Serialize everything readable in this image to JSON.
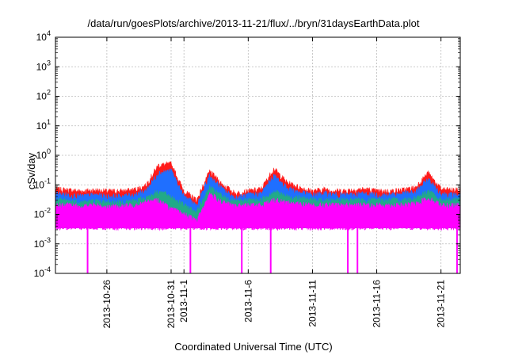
{
  "colors": {
    "red": "#ff1a1a",
    "blue": "#1f6fff",
    "teal": "#22aa88",
    "magenta": "#ff00ff",
    "grid": "#bbbbbb"
  },
  "chart_data": {
    "type": "line",
    "title": "/data/run/goesPlots/archive/2013-11-21/flux/../bryn/31daysEarthData.plot",
    "xlabel": "Coordinated Universal Time (UTC)",
    "ylabel": "cSv/day",
    "yscale": "log",
    "ylim": [
      0.0001,
      10000
    ],
    "xlim": [
      "2013-10-22T00:00",
      "2013-11-22T12:00"
    ],
    "grid": true,
    "legend": "none",
    "y_ticks": [
      {
        "value": 0.0001,
        "base": "10",
        "exp": "-4"
      },
      {
        "value": 0.001,
        "base": "10",
        "exp": "-3"
      },
      {
        "value": 0.01,
        "base": "10",
        "exp": "-2"
      },
      {
        "value": 0.1,
        "base": "10",
        "exp": "-1"
      },
      {
        "value": 1,
        "base": "10",
        "exp": "0"
      },
      {
        "value": 10,
        "base": "10",
        "exp": "1"
      },
      {
        "value": 100,
        "base": "10",
        "exp": "2"
      },
      {
        "value": 1000,
        "base": "10",
        "exp": "3"
      },
      {
        "value": 10000,
        "base": "10",
        "exp": "4"
      }
    ],
    "x_ticks": [
      {
        "date": "2013-10-26",
        "label": "2013-10-26"
      },
      {
        "date": "2013-10-31",
        "label": "2013-10-31"
      },
      {
        "date": "2013-11-01",
        "label": "2013-11-1"
      },
      {
        "date": "2013-11-06",
        "label": "2013-11-6"
      },
      {
        "date": "2013-11-11",
        "label": "2013-11-11"
      },
      {
        "date": "2013-11-16",
        "label": "2013-11-16"
      },
      {
        "date": "2013-11-21",
        "label": "2013-11-21"
      }
    ],
    "series": [
      {
        "color": "#ff1a1a",
        "x": [
          "2013-10-22",
          "2013-10-23",
          "2013-10-24",
          "2013-10-25",
          "2013-10-26",
          "2013-10-27",
          "2013-10-28",
          "2013-10-29",
          "2013-10-30",
          "2013-10-31",
          "2013-11-01",
          "2013-11-02",
          "2013-11-03",
          "2013-11-04",
          "2013-11-05",
          "2013-11-06",
          "2013-11-07",
          "2013-11-08",
          "2013-11-09",
          "2013-11-10",
          "2013-11-11",
          "2013-11-12",
          "2013-11-13",
          "2013-11-14",
          "2013-11-15",
          "2013-11-16",
          "2013-11-17",
          "2013-11-18",
          "2013-11-19",
          "2013-11-20",
          "2013-11-21",
          "2013-11-22"
        ],
        "y": [
          0.07,
          0.065,
          0.06,
          0.065,
          0.06,
          0.06,
          0.065,
          0.09,
          0.45,
          0.5,
          0.06,
          0.03,
          0.28,
          0.1,
          0.05,
          0.06,
          0.07,
          0.35,
          0.12,
          0.08,
          0.06,
          0.07,
          0.06,
          0.065,
          0.07,
          0.06,
          0.06,
          0.065,
          0.08,
          0.25,
          0.07,
          0.065
        ]
      },
      {
        "color": "#1f6fff",
        "x": [
          "2013-10-22",
          "2013-10-23",
          "2013-10-24",
          "2013-10-25",
          "2013-10-26",
          "2013-10-27",
          "2013-10-28",
          "2013-10-29",
          "2013-10-30",
          "2013-10-31",
          "2013-11-01",
          "2013-11-02",
          "2013-11-03",
          "2013-11-04",
          "2013-11-05",
          "2013-11-06",
          "2013-11-07",
          "2013-11-08",
          "2013-11-09",
          "2013-11-10",
          "2013-11-11",
          "2013-11-12",
          "2013-11-13",
          "2013-11-14",
          "2013-11-15",
          "2013-11-16",
          "2013-11-17",
          "2013-11-18",
          "2013-11-19",
          "2013-11-20",
          "2013-11-21",
          "2013-11-22"
        ],
        "y": [
          0.05,
          0.045,
          0.04,
          0.045,
          0.04,
          0.04,
          0.045,
          0.06,
          0.25,
          0.3,
          0.04,
          0.02,
          0.2,
          0.07,
          0.035,
          0.045,
          0.05,
          0.2,
          0.08,
          0.055,
          0.045,
          0.05,
          0.045,
          0.045,
          0.05,
          0.045,
          0.045,
          0.05,
          0.055,
          0.15,
          0.05,
          0.045
        ]
      },
      {
        "color": "#22aa88",
        "x": [
          "2013-10-22",
          "2013-10-23",
          "2013-10-24",
          "2013-10-25",
          "2013-10-26",
          "2013-10-27",
          "2013-10-28",
          "2013-10-29",
          "2013-10-30",
          "2013-10-31",
          "2013-11-01",
          "2013-11-02",
          "2013-11-03",
          "2013-11-04",
          "2013-11-05",
          "2013-11-06",
          "2013-11-07",
          "2013-11-08",
          "2013-11-09",
          "2013-11-10",
          "2013-11-11",
          "2013-11-12",
          "2013-11-13",
          "2013-11-14",
          "2013-11-15",
          "2013-11-16",
          "2013-11-17",
          "2013-11-18",
          "2013-11-19",
          "2013-11-20",
          "2013-11-21",
          "2013-11-22"
        ],
        "y": [
          0.03,
          0.028,
          0.025,
          0.028,
          0.025,
          0.025,
          0.028,
          0.035,
          0.06,
          0.04,
          0.02,
          0.012,
          0.08,
          0.04,
          0.025,
          0.03,
          0.03,
          0.06,
          0.04,
          0.035,
          0.03,
          0.03,
          0.03,
          0.03,
          0.03,
          0.03,
          0.03,
          0.03,
          0.035,
          0.06,
          0.03,
          0.03
        ]
      },
      {
        "color": "#ff00ff",
        "x": [
          "2013-10-22",
          "2013-10-23",
          "2013-10-24",
          "2013-10-25",
          "2013-10-26",
          "2013-10-27",
          "2013-10-28",
          "2013-10-29",
          "2013-10-30",
          "2013-10-31",
          "2013-11-01",
          "2013-11-02",
          "2013-11-03",
          "2013-11-04",
          "2013-11-05",
          "2013-11-06",
          "2013-11-07",
          "2013-11-08",
          "2013-11-09",
          "2013-11-10",
          "2013-11-11",
          "2013-11-12",
          "2013-11-13",
          "2013-11-14",
          "2013-11-15",
          "2013-11-16",
          "2013-11-17",
          "2013-11-18",
          "2013-11-19",
          "2013-11-20",
          "2013-11-21",
          "2013-11-22"
        ],
        "y": [
          0.02,
          0.02,
          0.018,
          0.02,
          0.018,
          0.018,
          0.02,
          0.025,
          0.03,
          0.015,
          0.01,
          0.006,
          0.05,
          0.025,
          0.018,
          0.02,
          0.02,
          0.03,
          0.025,
          0.022,
          0.02,
          0.02,
          0.02,
          0.02,
          0.02,
          0.02,
          0.02,
          0.02,
          0.022,
          0.035,
          0.02,
          0.02
        ],
        "band_low": 0.0035,
        "dropouts": [
          "2013-10-24T12:00",
          "2013-11-01T12:00",
          "2013-11-05T12:00",
          "2013-11-07T18:00",
          "2013-11-13T18:00",
          "2013-11-14T12:00",
          "2013-11-22T06:00"
        ]
      }
    ]
  }
}
